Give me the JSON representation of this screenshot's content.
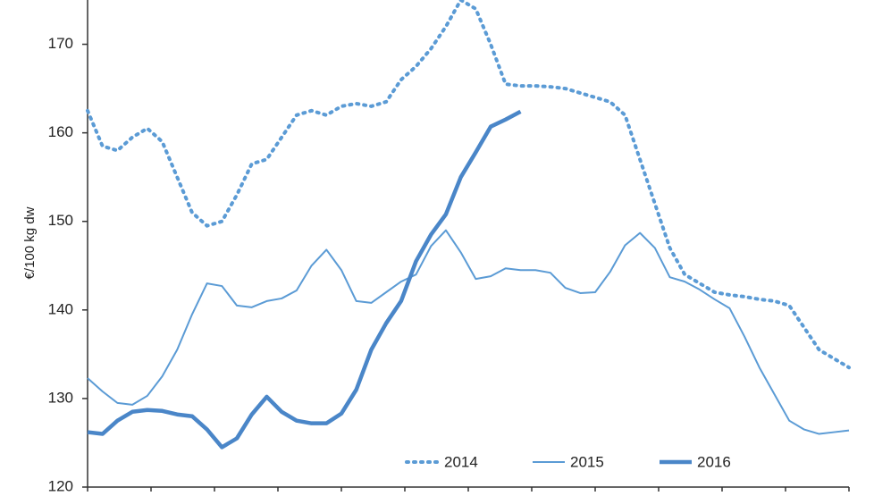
{
  "chart_data": {
    "type": "line",
    "y_label": "€/100 kg dw",
    "categories": [
      null,
      null,
      null,
      null,
      null,
      null,
      null,
      null,
      null,
      null,
      null,
      null,
      null,
      null,
      null,
      null,
      null,
      null,
      null,
      null,
      null,
      null,
      null,
      null,
      null,
      null,
      null,
      null,
      null,
      null,
      null,
      null,
      null,
      null,
      null,
      null,
      null,
      null,
      null,
      null,
      null,
      null,
      null,
      null,
      null,
      null,
      null,
      null,
      null,
      null,
      null,
      null
    ],
    "ylim": [
      120,
      175
    ],
    "yticks": [
      120,
      130,
      140,
      150,
      160,
      170
    ],
    "series": [
      {
        "name": "2014",
        "color": "#5b9bd5",
        "line_style": "dotted",
        "line_width": 4,
        "values": [
          162.5,
          158.5,
          158,
          159.5,
          160.5,
          159,
          155,
          151,
          149.5,
          150,
          153,
          156.5,
          157,
          159.5,
          162,
          162.5,
          162,
          163,
          163.3,
          163,
          163.5,
          166,
          167.5,
          169.5,
          172,
          175,
          174,
          170,
          165.5,
          165.3,
          165.3,
          165.2,
          165,
          164.5,
          164,
          163.5,
          162,
          157,
          152,
          147,
          144,
          143,
          142,
          141.7,
          141.5,
          141.2,
          141,
          140.5,
          138,
          135.5,
          134.5,
          133.5
        ]
      },
      {
        "name": "2015",
        "color": "#5b9bd5",
        "line_style": "solid",
        "line_width": 2,
        "values": [
          132.3,
          130.8,
          129.5,
          129.3,
          130.3,
          132.5,
          135.5,
          139.5,
          143,
          142.7,
          140.5,
          140.3,
          141,
          141.3,
          142.2,
          145,
          146.8,
          144.5,
          141,
          140.8,
          142,
          143.2,
          144,
          147.2,
          149,
          146.5,
          143.5,
          143.8,
          144.7,
          144.5,
          144.5,
          144.2,
          142.5,
          141.9,
          142,
          144.3,
          147.3,
          148.7,
          147,
          143.7,
          143.2,
          142.3,
          141.2,
          140.2,
          137,
          133.5,
          130.5,
          127.5,
          126.5,
          126,
          126.2,
          126.4
        ]
      },
      {
        "name": "2016",
        "color": "#4a86c8",
        "line_style": "solid",
        "line_width": 4.5,
        "values": [
          126.2,
          126,
          127.5,
          128.5,
          128.7,
          128.6,
          128.2,
          128,
          126.5,
          124.5,
          125.5,
          128.2,
          130.2,
          128.5,
          127.5,
          127.2,
          127.2,
          128.3,
          131,
          135.5,
          138.5,
          141,
          145.5,
          148.5,
          150.8,
          155,
          157.8,
          160.7,
          161.5,
          162.4,
          null,
          null,
          null,
          null,
          null,
          null,
          null,
          null,
          null,
          null,
          null,
          null,
          null,
          null,
          null,
          null,
          null,
          null,
          null,
          null,
          null,
          null
        ]
      }
    ]
  }
}
